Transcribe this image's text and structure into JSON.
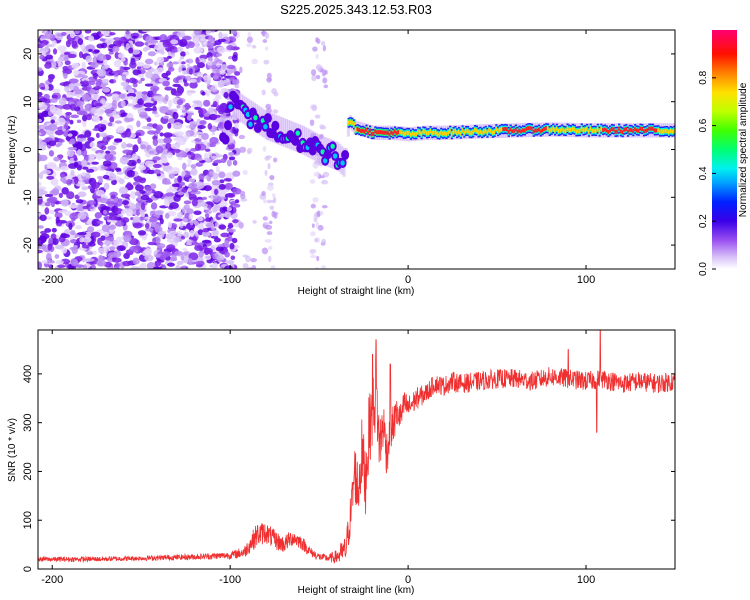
{
  "title": "S225.2025.343.12.53.R03",
  "chart_data": [
    {
      "id": "spectrogram",
      "type": "heatmap",
      "xlabel": "Height of straight line (km)",
      "ylabel": "Frequency (Hz)",
      "xlim": [
        -208,
        150
      ],
      "ylim": [
        -25,
        25
      ],
      "xticks": [
        -200,
        -100,
        0,
        100
      ],
      "yticks": [
        -20,
        -10,
        0,
        10,
        20
      ],
      "colorbar": {
        "label": "Normalized spectral amplitude",
        "range": [
          0.0,
          1.0
        ],
        "ticks": [
          0.0,
          0.2,
          0.4,
          0.6,
          0.8
        ],
        "colormap": [
          "#ffffff",
          "#c9a8f5",
          "#8f3ff0",
          "#5a00e0",
          "#0000ff",
          "#00b8ff",
          "#00ffd8",
          "#00ff50",
          "#80ff00",
          "#ffff00",
          "#ff8000",
          "#ff0000",
          "#ff0060"
        ]
      },
      "signal_track": {
        "description_x": [
          -100,
          -90,
          -80,
          -70,
          -60,
          -50,
          -40,
          -36,
          -34,
          -30,
          -20,
          -10,
          0,
          10,
          20,
          40,
          60,
          80,
          100,
          120,
          150
        ],
        "frequency_hz": [
          10,
          7.5,
          5,
          3.5,
          2,
          0,
          -1.5,
          -3,
          6,
          4.5,
          3.5,
          3.5,
          3.2,
          3.5,
          3.5,
          3.8,
          4,
          4.2,
          4,
          4,
          4
        ]
      }
    },
    {
      "id": "snr",
      "type": "line",
      "xlabel": "Height of straight line (km)",
      "ylabel": "SNR (10 * v/v)",
      "xlim": [
        -208,
        150
      ],
      "ylim": [
        0,
        490
      ],
      "xticks": [
        -200,
        -100,
        0,
        100
      ],
      "yticks": [
        0,
        100,
        200,
        300,
        400
      ],
      "color": "#f03030",
      "series": [
        {
          "name": "SNR",
          "x": [
            -208,
            -180,
            -150,
            -120,
            -100,
            -92,
            -85,
            -80,
            -75,
            -70,
            -65,
            -60,
            -55,
            -50,
            -45,
            -40,
            -35,
            -32,
            -30,
            -28,
            -26,
            -24,
            -22,
            -20,
            -18,
            -16,
            -14,
            -12,
            -10,
            -8,
            -6,
            -4,
            -2,
            0,
            5,
            10,
            15,
            20,
            25,
            30,
            40,
            50,
            60,
            70,
            80,
            90,
            100,
            110,
            120,
            130,
            140,
            150
          ],
          "y": [
            20,
            20,
            22,
            25,
            28,
            35,
            70,
            75,
            60,
            50,
            65,
            55,
            35,
            25,
            22,
            25,
            40,
            120,
            200,
            160,
            240,
            180,
            280,
            320,
            360,
            250,
            300,
            240,
            280,
            300,
            320,
            310,
            340,
            330,
            350,
            360,
            380,
            375,
            385,
            380,
            385,
            390,
            390,
            385,
            395,
            390,
            385,
            390,
            380,
            385,
            380,
            385
          ],
          "noise_amplitude": [
            10,
            10,
            10,
            12,
            15,
            25,
            50,
            45,
            40,
            35,
            35,
            30,
            20,
            15,
            15,
            30,
            60,
            90,
            120,
            130,
            140,
            150,
            150,
            140,
            150,
            130,
            110,
            100,
            90,
            80,
            70,
            60,
            55,
            50,
            45,
            40,
            40,
            40,
            40,
            40,
            40,
            40,
            40,
            40,
            40,
            40,
            40,
            40,
            40,
            40,
            40,
            40
          ],
          "peaks": [
            [
              -18,
              470
            ],
            [
              -20,
              440
            ],
            [
              -10,
              420
            ],
            [
              108,
              490
            ],
            [
              90,
              450
            ],
            [
              106,
              280
            ]
          ]
        }
      ]
    }
  ]
}
